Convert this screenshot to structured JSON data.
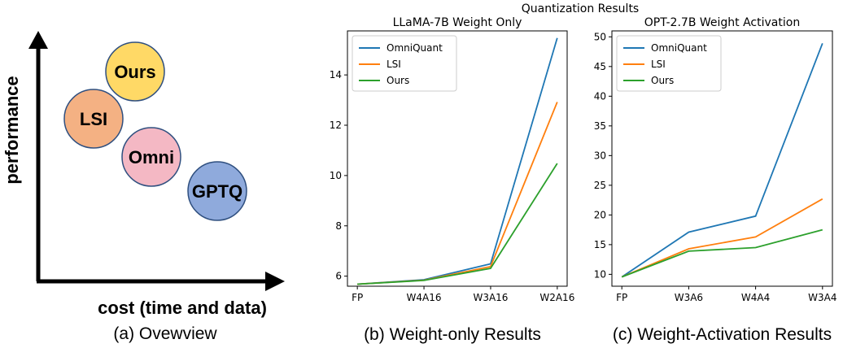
{
  "overview": {
    "ylabel": "performance",
    "xlabel": "cost (time and data)",
    "caption": "(a) Ovewview",
    "bubbles": [
      {
        "label": "Ours",
        "color": "#ffd966"
      },
      {
        "label": "LSI",
        "color": "#f4b183"
      },
      {
        "label": "Omni",
        "color": "#f4b8c4"
      },
      {
        "label": "GPTQ",
        "color": "#8faadc"
      }
    ]
  },
  "suptitle": "Quantization Results",
  "chart_data": [
    {
      "type": "line",
      "title": "LLaMA-7B Weight Only",
      "caption": "(b) Weight-only Results",
      "categories": [
        "FP",
        "W4A16",
        "W3A16",
        "W2A16"
      ],
      "ylim": [
        5.6,
        15.75
      ],
      "yticks": [
        6,
        8,
        10,
        12,
        14
      ],
      "legend": "top-left",
      "grid": false,
      "series": [
        {
          "name": "OmniQuant",
          "color": "#1f77b4",
          "values": [
            5.68,
            5.86,
            6.49,
            15.47
          ]
        },
        {
          "name": "LSI",
          "color": "#ff7f0e",
          "values": [
            5.68,
            5.84,
            6.38,
            12.92
          ]
        },
        {
          "name": "Ours",
          "color": "#2ca02c",
          "values": [
            5.68,
            5.83,
            6.31,
            10.48
          ]
        }
      ]
    },
    {
      "type": "line",
      "title": "OPT-2.7B Weight Activation",
      "caption": "(c) Weight-Activation Results",
      "categories": [
        "FP",
        "W3A6",
        "W4A4",
        "W3A4"
      ],
      "ylim": [
        8,
        51
      ],
      "yticks": [
        10,
        15,
        20,
        25,
        30,
        35,
        40,
        45,
        50
      ],
      "legend": "top-left",
      "grid": false,
      "series": [
        {
          "name": "OmniQuant",
          "color": "#1f77b4",
          "values": [
            9.56,
            17.1,
            19.8,
            48.9
          ]
        },
        {
          "name": "LSI",
          "color": "#ff7f0e",
          "values": [
            9.56,
            14.3,
            16.3,
            22.7
          ]
        },
        {
          "name": "Ours",
          "color": "#2ca02c",
          "values": [
            9.56,
            13.9,
            14.5,
            17.5
          ]
        }
      ]
    }
  ]
}
